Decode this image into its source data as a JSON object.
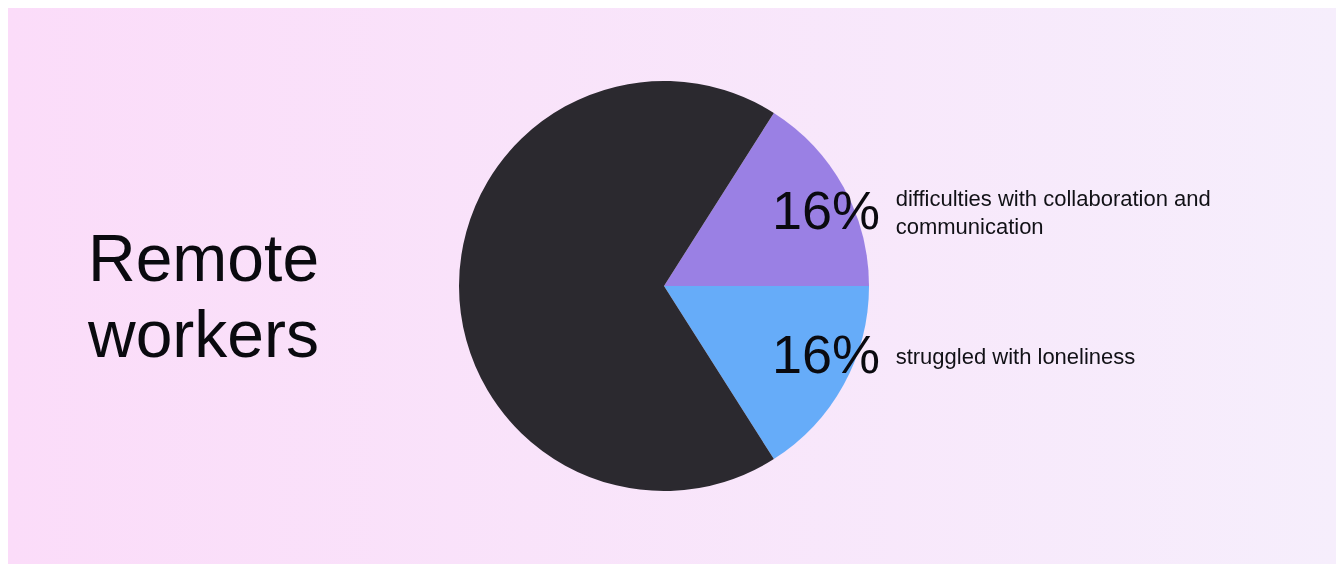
{
  "chart_data": {
    "type": "pie",
    "title": "Remote workers",
    "categories": [
      "difficulties with collaboration and communication",
      "struggled with loneliness",
      null
    ],
    "values": [
      16,
      16,
      68
    ],
    "value_labels": [
      "16%",
      "16%",
      null
    ],
    "colors": [
      "#9a80e4",
      "#66acf9",
      "#2b292f"
    ],
    "legend": false
  }
}
